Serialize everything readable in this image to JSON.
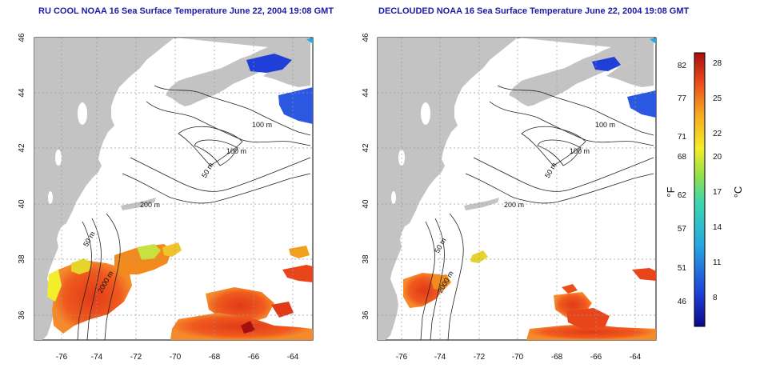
{
  "left_panel": {
    "title": "RU COOL NOAA 16 Sea Surface Temperature June 22, 2004 19:08 GMT",
    "contour_labels": [
      "100 m",
      "100 m",
      "50 m",
      "200 m",
      "50 m",
      "2000 m"
    ]
  },
  "right_panel": {
    "title": "DECLOUDED NOAA 16 Sea Surface Temperature June 22, 2004 19:08 GMT",
    "contour_labels": [
      "100 m",
      "100 m",
      "50 m",
      "200 m",
      "50 m",
      "2000 m"
    ]
  },
  "axes": {
    "lat_ticks": [
      "46",
      "44",
      "42",
      "40",
      "38",
      "36"
    ],
    "lon_ticks": [
      "-76",
      "-74",
      "-72",
      "-70",
      "-68",
      "-66",
      "-64"
    ]
  },
  "colorbar": {
    "f_label": "°F",
    "c_label": "°C",
    "f_ticks": [
      "82",
      "77",
      "71",
      "68",
      "62",
      "57",
      "51",
      "46"
    ],
    "c_ticks": [
      "28",
      "25",
      "22",
      "20",
      "17",
      "14",
      "11",
      "8"
    ]
  },
  "colors": {
    "land": "#c3c3c3",
    "title": "#1a1aa8",
    "warm": "#e8501a",
    "cold": "#1a4fd6"
  }
}
